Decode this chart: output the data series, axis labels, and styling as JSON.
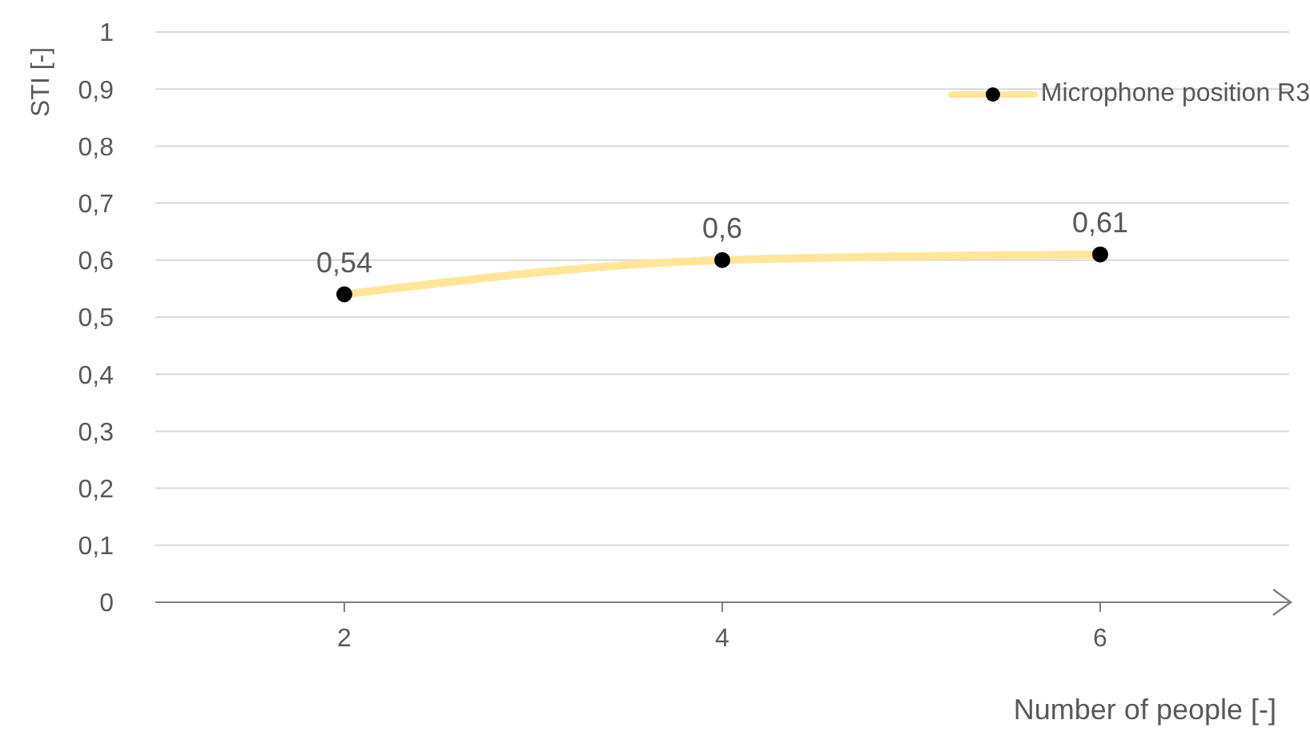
{
  "chart_data": {
    "type": "line",
    "xlabel": "Number of people [-]",
    "ylabel": "STI [-]",
    "categories": [
      "2",
      "4",
      "6"
    ],
    "series": [
      {
        "name": "Microphone position R3",
        "color": "#ffe699",
        "values": [
          0.54,
          0.6,
          0.61
        ],
        "value_labels": [
          "0,54",
          "0,6",
          "0,61"
        ]
      }
    ],
    "ylim": [
      0,
      1
    ],
    "yticks": [
      {
        "value": 0,
        "label": "0"
      },
      {
        "value": 0.1,
        "label": "0,1"
      },
      {
        "value": 0.2,
        "label": "0,2"
      },
      {
        "value": 0.3,
        "label": "0,3"
      },
      {
        "value": 0.4,
        "label": "0,4"
      },
      {
        "value": 0.5,
        "label": "0,5"
      },
      {
        "value": 0.6,
        "label": "0,6"
      },
      {
        "value": 0.7,
        "label": "0,7"
      },
      {
        "value": 0.8,
        "label": "0,8"
      },
      {
        "value": 0.9,
        "label": "0,9"
      },
      {
        "value": 1,
        "label": "1"
      }
    ],
    "grid": "y",
    "legend": "top right",
    "marker": "circle",
    "line_style": "solid"
  }
}
